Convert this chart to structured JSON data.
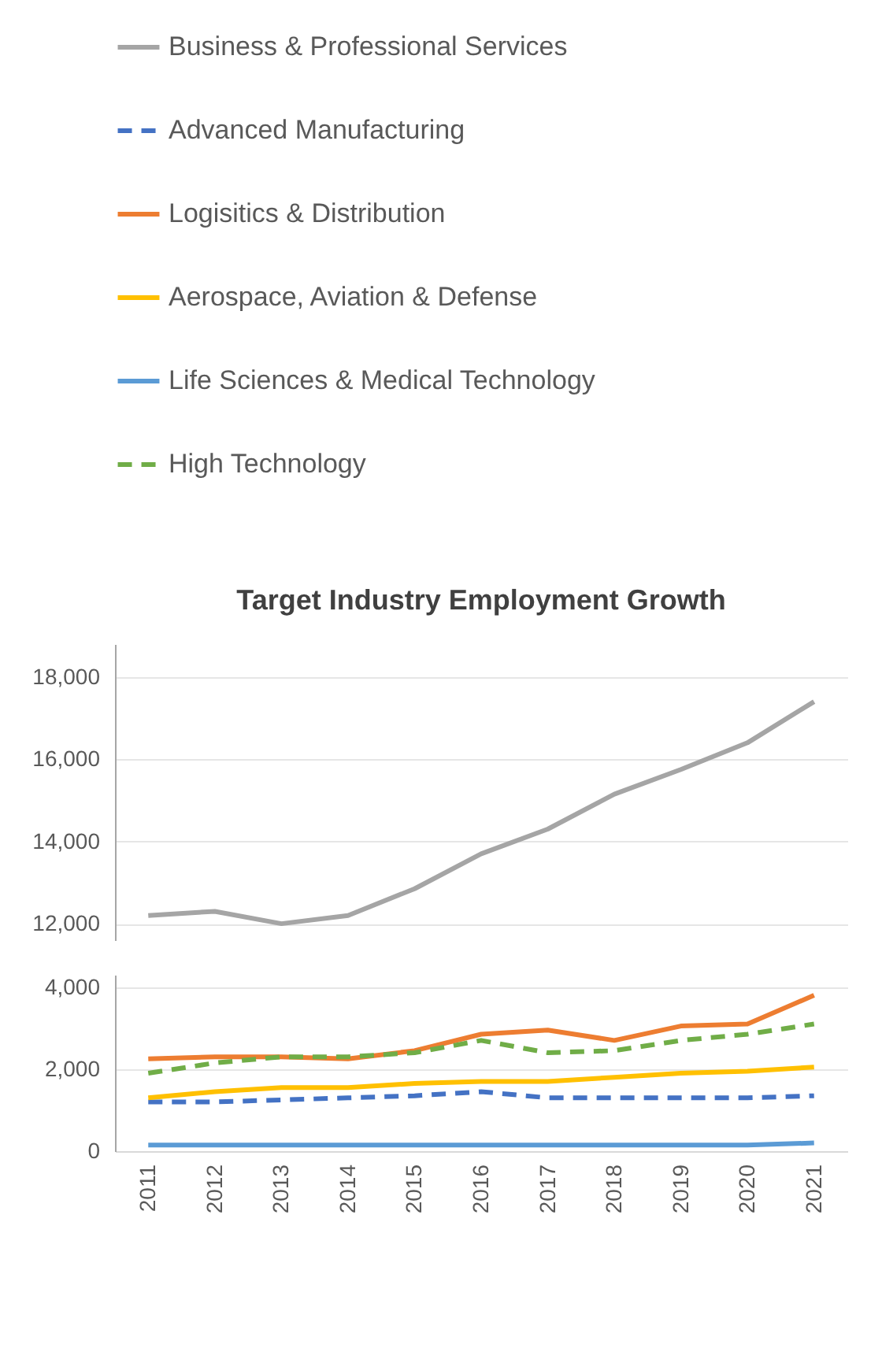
{
  "chart_data": [
    {
      "type": "line",
      "title": "Target Industry Employment Growth",
      "legend": "top",
      "grid": "y",
      "tick_labels": "y",
      "categories": [
        "2011",
        "2012",
        "2013",
        "2014",
        "2015",
        "2016",
        "2017",
        "2018",
        "2019",
        "2020",
        "2021"
      ],
      "ylim": [
        11600,
        18800
      ],
      "yticks": [
        {
          "value": 12000,
          "label": "12,000"
        },
        {
          "value": 14000,
          "label": "14,000"
        },
        {
          "value": 16000,
          "label": "16,000"
        },
        {
          "value": 18000,
          "label": "18,000"
        }
      ],
      "series": [
        {
          "name": "Business & Professional Services",
          "color": "#a5a5a5",
          "values": [
            12200,
            12300,
            12000,
            12200,
            12850,
            13700,
            14300,
            15150,
            15750,
            16400,
            17400
          ]
        }
      ]
    },
    {
      "type": "line",
      "grid": "y",
      "legend": "top",
      "categories": [
        "2011",
        "2012",
        "2013",
        "2014",
        "2015",
        "2016",
        "2017",
        "2018",
        "2019",
        "2020",
        "2021"
      ],
      "ylim": [
        0,
        4300
      ],
      "yticks": [
        0,
        {
          "value": 2000,
          "label": "2,000"
        },
        {
          "value": 4000,
          "label": "4,000"
        }
      ],
      "series": [
        {
          "name": "Advanced Manufacturing",
          "color": "#4472c4",
          "line_style": "dashed",
          "values": [
            1200,
            1200,
            1250,
            1300,
            1350,
            1450,
            1300,
            1300,
            1300,
            1300,
            1350
          ]
        },
        {
          "name": "Logisitics & Distribution",
          "color": "#ed7d31",
          "values": [
            2250,
            2300,
            2300,
            2250,
            2450,
            2850,
            2950,
            2700,
            3050,
            3100,
            3800
          ]
        },
        {
          "name": "Aerospace, Aviation  & Defense",
          "color": "#ffc000",
          "values": [
            1300,
            1450,
            1550,
            1550,
            1650,
            1700,
            1700,
            1800,
            1900,
            1950,
            2050
          ]
        },
        {
          "name": "Life Sciences & Medical Technology",
          "color": "#5b9bd5",
          "values": [
            150,
            150,
            150,
            150,
            150,
            150,
            150,
            150,
            150,
            150,
            200
          ]
        },
        {
          "name": "High Technology",
          "color": "#70ad47",
          "line_style": "dashed",
          "values": [
            1900,
            2150,
            2300,
            2300,
            2400,
            2700,
            2400,
            2450,
            2700,
            2850,
            3100
          ]
        }
      ]
    }
  ]
}
